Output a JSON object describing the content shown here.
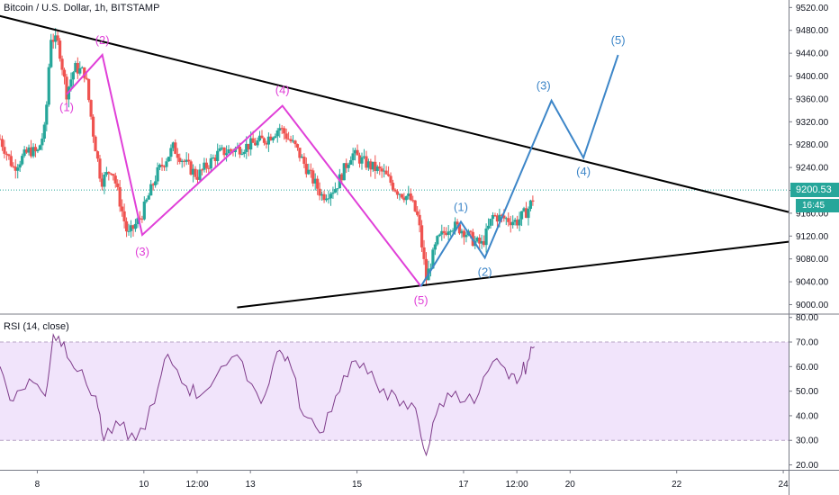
{
  "header": {
    "title": "Bitcoin / U.S. Dollar, 1h, BITSTAMP"
  },
  "rsi_panel": {
    "title": "RSI (14, close)"
  },
  "last_price": {
    "value": "9200.53",
    "countdown": "16:45"
  },
  "colors": {
    "up": "#26a69a",
    "down": "#ef5350",
    "magenta": "#e040d8",
    "blue": "#3d86c8",
    "rsi": "#7e3b8a",
    "rsi_band": "#f1e4fb"
  },
  "chart_data": [
    {
      "type": "candlestick",
      "title": "Bitcoin / U.S. Dollar, 1h, BITSTAMP",
      "x_ticks": [
        "8",
        "10",
        "12:00",
        "13",
        "15",
        "17",
        "12:00",
        "20",
        "22",
        "24"
      ],
      "x_tick_pos": [
        1,
        3,
        4,
        5,
        7,
        9,
        10,
        11,
        13,
        15
      ],
      "x_range": [
        0.3,
        15.1
      ],
      "y_ticks": [
        "9000.00",
        "9040.00",
        "9080.00",
        "9120.00",
        "9160.00",
        "9200.00",
        "9240.00",
        "9280.00",
        "9320.00",
        "9360.00",
        "9400.00",
        "9440.00",
        "9480.00",
        "9520.00"
      ],
      "ylim": [
        8985,
        9530
      ],
      "last_price": 9200.53,
      "price_path": [
        [
          0.3,
          9290
        ],
        [
          0.55,
          9240
        ],
        [
          0.85,
          9270
        ],
        [
          1.0,
          9265
        ],
        [
          1.15,
          9310
        ],
        [
          1.25,
          9470
        ],
        [
          1.4,
          9455
        ],
        [
          1.55,
          9370
        ],
        [
          1.7,
          9415
        ],
        [
          1.9,
          9405
        ],
        [
          2.05,
          9300
        ],
        [
          2.2,
          9215
        ],
        [
          2.4,
          9240
        ],
        [
          2.7,
          9120
        ],
        [
          2.95,
          9155
        ],
        [
          3.25,
          9230
        ],
        [
          3.55,
          9275
        ],
        [
          3.8,
          9245
        ],
        [
          4.0,
          9225
        ],
        [
          4.4,
          9265
        ],
        [
          4.85,
          9275
        ],
        [
          5.3,
          9290
        ],
        [
          5.55,
          9310
        ],
        [
          5.85,
          9275
        ],
        [
          6.1,
          9230
        ],
        [
          6.35,
          9190
        ],
        [
          6.6,
          9205
        ],
        [
          6.9,
          9265
        ],
        [
          7.2,
          9245
        ],
        [
          7.5,
          9230
        ],
        [
          7.75,
          9200
        ],
        [
          8.0,
          9185
        ],
        [
          8.15,
          9150
        ],
        [
          8.3,
          9045
        ],
        [
          8.5,
          9110
        ],
        [
          8.75,
          9140
        ],
        [
          9.0,
          9130
        ],
        [
          9.2,
          9110
        ],
        [
          9.35,
          9105
        ],
        [
          9.55,
          9155
        ],
        [
          9.8,
          9150
        ],
        [
          10.0,
          9145
        ],
        [
          10.2,
          9165
        ],
        [
          10.3,
          9185
        ],
        [
          10.33,
          9200
        ]
      ],
      "trendlines": [
        {
          "name": "upper",
          "points": [
            [
              0.0,
              9512
            ],
            [
              15.1,
              9162
            ]
          ]
        },
        {
          "name": "lower",
          "points": [
            [
              4.75,
              8995
            ],
            [
              15.1,
              9110
            ]
          ]
        }
      ],
      "magenta_wave": [
        [
          1.55,
          9368
        ],
        [
          2.22,
          9437
        ],
        [
          2.97,
          9122
        ],
        [
          5.6,
          9348
        ],
        [
          8.2,
          9032
        ]
      ],
      "magenta_labels": [
        {
          "label": "(1)",
          "x": 1.55,
          "y": 9345
        },
        {
          "label": "(2)",
          "x": 2.22,
          "y": 9462
        },
        {
          "label": "(3)",
          "x": 2.97,
          "y": 9092
        },
        {
          "label": "(4)",
          "x": 5.6,
          "y": 9375
        },
        {
          "label": "(5)",
          "x": 8.2,
          "y": 9007
        }
      ],
      "blue_wave": [
        [
          8.2,
          9032
        ],
        [
          8.95,
          9145
        ],
        [
          9.4,
          9082
        ],
        [
          10.65,
          9357
        ],
        [
          11.25,
          9257
        ],
        [
          11.9,
          9437
        ]
      ],
      "blue_labels": [
        {
          "label": "(1)",
          "x": 8.95,
          "y": 9170
        },
        {
          "label": "(2)",
          "x": 9.4,
          "y": 9057
        },
        {
          "label": "(3)",
          "x": 10.5,
          "y": 9383
        },
        {
          "label": "(4)",
          "x": 11.25,
          "y": 9232
        },
        {
          "label": "(5)",
          "x": 11.9,
          "y": 9462
        }
      ]
    },
    {
      "type": "line",
      "title": "RSI (14, close)",
      "y_ticks": [
        "20.00",
        "30.00",
        "40.00",
        "50.00",
        "60.00",
        "70.00",
        "80.00"
      ],
      "ylim": [
        18,
        81
      ],
      "band": [
        30,
        70
      ],
      "points": [
        [
          0.3,
          60
        ],
        [
          0.55,
          46
        ],
        [
          0.85,
          55
        ],
        [
          1.15,
          48
        ],
        [
          1.3,
          73
        ],
        [
          1.5,
          70
        ],
        [
          1.75,
          58
        ],
        [
          2.1,
          48
        ],
        [
          2.25,
          30
        ],
        [
          2.55,
          36
        ],
        [
          2.85,
          30
        ],
        [
          3.2,
          45
        ],
        [
          3.45,
          65
        ],
        [
          3.8,
          52
        ],
        [
          4.05,
          48
        ],
        [
          4.45,
          60
        ],
        [
          4.85,
          62
        ],
        [
          5.2,
          45
        ],
        [
          5.5,
          66
        ],
        [
          5.7,
          64
        ],
        [
          6.0,
          40
        ],
        [
          6.3,
          33
        ],
        [
          6.6,
          48
        ],
        [
          6.9,
          62
        ],
        [
          7.2,
          57
        ],
        [
          7.5,
          51
        ],
        [
          7.8,
          44
        ],
        [
          8.1,
          43
        ],
        [
          8.3,
          24
        ],
        [
          8.55,
          45
        ],
        [
          8.85,
          50
        ],
        [
          9.2,
          45
        ],
        [
          9.55,
          62
        ],
        [
          9.85,
          55
        ],
        [
          10.05,
          55
        ],
        [
          10.2,
          62
        ],
        [
          10.33,
          68
        ]
      ]
    }
  ]
}
